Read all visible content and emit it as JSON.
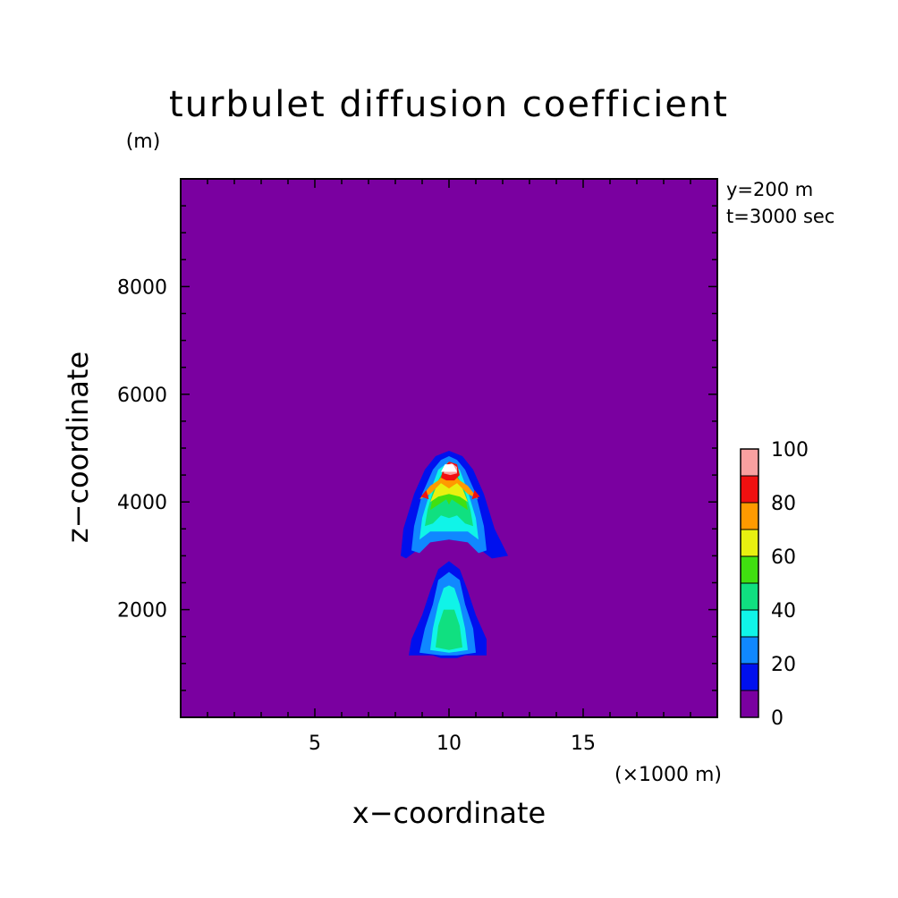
{
  "colors": {
    "background_field": "#7a00a0",
    "levels": [
      "#7a00a0",
      "#0010ee",
      "#1088ff",
      "#10f4e8",
      "#10e080",
      "#40e010",
      "#e8f010",
      "#ff9a00",
      "#f01010",
      "#f8a0a0"
    ],
    "peak": "#ffffff"
  },
  "chart_data": {
    "type": "contour",
    "title": "turbulet diffusion coefficient",
    "xlabel": "x−coordinate",
    "ylabel": "z−coordinate",
    "x_unit_label": "(×1000 m)",
    "y_unit_label": "(m)",
    "xlim": [
      0,
      20
    ],
    "ylim": [
      0,
      10000
    ],
    "x_ticks": [
      5,
      10,
      15
    ],
    "x_tick_labels": [
      "5",
      "10",
      "15"
    ],
    "y_ticks": [
      2000,
      4000,
      6000,
      8000
    ],
    "y_tick_labels": [
      "2000",
      "4000",
      "6000",
      "8000"
    ],
    "grid": false,
    "annotations": [
      "y=200 m",
      "t=3000 sec"
    ],
    "colorbar": {
      "levels": [
        0,
        10,
        20,
        30,
        40,
        50,
        60,
        70,
        80,
        90,
        100
      ],
      "tick_labels": [
        "0",
        "20",
        "40",
        "60",
        "80",
        "100"
      ],
      "tick_values": [
        0,
        20,
        40,
        60,
        80,
        100
      ]
    },
    "contours": [
      {
        "level": 10,
        "region": "upper",
        "points": [
          [
            8.2,
            3000
          ],
          [
            8.3,
            3500
          ],
          [
            8.7,
            4150
          ],
          [
            9.1,
            4600
          ],
          [
            9.5,
            4850
          ],
          [
            10,
            4950
          ],
          [
            10.5,
            4850
          ],
          [
            10.9,
            4600
          ],
          [
            11.3,
            4150
          ],
          [
            11.7,
            3500
          ],
          [
            12.2,
            3000
          ],
          [
            11.6,
            2950
          ],
          [
            11.2,
            3100
          ],
          [
            10.8,
            3250
          ],
          [
            10,
            3300
          ],
          [
            9.2,
            3250
          ],
          [
            8.8,
            3100
          ],
          [
            8.4,
            2950
          ]
        ]
      },
      {
        "level": 20,
        "region": "upper",
        "points": [
          [
            8.6,
            3100
          ],
          [
            8.7,
            3550
          ],
          [
            9,
            4150
          ],
          [
            9.4,
            4600
          ],
          [
            9.7,
            4780
          ],
          [
            10,
            4850
          ],
          [
            10.3,
            4780
          ],
          [
            10.6,
            4600
          ],
          [
            11,
            4150
          ],
          [
            11.3,
            3550
          ],
          [
            11.4,
            3100
          ],
          [
            11.1,
            3050
          ],
          [
            10.7,
            3250
          ],
          [
            10,
            3300
          ],
          [
            9.3,
            3250
          ],
          [
            8.9,
            3050
          ]
        ]
      },
      {
        "level": 30,
        "region": "upper",
        "points": [
          [
            8.9,
            3300
          ],
          [
            9,
            3700
          ],
          [
            9.3,
            4200
          ],
          [
            9.6,
            4600
          ],
          [
            10,
            4750
          ],
          [
            10.4,
            4600
          ],
          [
            10.7,
            4200
          ],
          [
            11,
            3700
          ],
          [
            11.1,
            3300
          ],
          [
            10.7,
            3450
          ],
          [
            10,
            3450
          ],
          [
            9.3,
            3450
          ]
        ]
      },
      {
        "level": 40,
        "region": "upper",
        "points": [
          [
            9.1,
            3550
          ],
          [
            9.2,
            3850
          ],
          [
            9.4,
            4200
          ],
          [
            9.7,
            4500
          ],
          [
            10,
            4650
          ],
          [
            10.3,
            4500
          ],
          [
            10.6,
            4200
          ],
          [
            10.8,
            3850
          ],
          [
            10.9,
            3550
          ],
          [
            10.6,
            3600
          ],
          [
            10.3,
            3750
          ],
          [
            10,
            3700
          ],
          [
            9.7,
            3750
          ],
          [
            9.4,
            3600
          ]
        ]
      },
      {
        "level": 50,
        "region": "upper",
        "points": [
          [
            9.3,
            3850
          ],
          [
            9.4,
            4100
          ],
          [
            9.6,
            4400
          ],
          [
            9.8,
            4550
          ],
          [
            10,
            4620
          ],
          [
            10.2,
            4550
          ],
          [
            10.4,
            4400
          ],
          [
            10.6,
            4100
          ],
          [
            10.7,
            3850
          ],
          [
            10.4,
            3950
          ],
          [
            10.1,
            4050
          ],
          [
            10,
            3950
          ],
          [
            9.9,
            4050
          ],
          [
            9.6,
            3950
          ]
        ]
      },
      {
        "level": 60,
        "region": "upper",
        "points": [
          [
            9.3,
            4000
          ],
          [
            9.5,
            4250
          ],
          [
            9.7,
            4450
          ],
          [
            10,
            4550
          ],
          [
            10.3,
            4450
          ],
          [
            10.5,
            4250
          ],
          [
            10.7,
            4000
          ],
          [
            10.4,
            4100
          ],
          [
            10,
            4150
          ],
          [
            9.6,
            4100
          ]
        ]
      },
      {
        "level": 70,
        "region": "upper",
        "points": [
          [
            8.9,
            4050
          ],
          [
            9.3,
            4300
          ],
          [
            9.6,
            4400
          ],
          [
            9.8,
            4500
          ],
          [
            10.2,
            4500
          ],
          [
            10.4,
            4400
          ],
          [
            10.7,
            4300
          ],
          [
            11.1,
            4050
          ],
          [
            10.7,
            4150
          ],
          [
            10.3,
            4350
          ],
          [
            10,
            4250
          ],
          [
            9.7,
            4350
          ],
          [
            9.3,
            4150
          ]
        ]
      },
      {
        "level": 80,
        "region": "upper",
        "points": [
          [
            9.7,
            4450
          ],
          [
            9.8,
            4650
          ],
          [
            10,
            4750
          ],
          [
            10.3,
            4700
          ],
          [
            10.4,
            4500
          ],
          [
            10.2,
            4400
          ],
          [
            9.9,
            4400
          ]
        ]
      },
      {
        "level": 80,
        "region": "upper-left-spot",
        "points": [
          [
            8.95,
            4100
          ],
          [
            9.15,
            4220
          ],
          [
            9.25,
            4050
          ]
        ]
      },
      {
        "level": 80,
        "region": "upper-right-spot",
        "points": [
          [
            10.85,
            4050
          ],
          [
            10.95,
            4220
          ],
          [
            11.15,
            4100
          ]
        ]
      },
      {
        "level": 90,
        "region": "upper",
        "points": [
          [
            9.8,
            4530
          ],
          [
            9.9,
            4680
          ],
          [
            10.1,
            4720
          ],
          [
            10.3,
            4650
          ],
          [
            10.3,
            4530
          ],
          [
            10.05,
            4500
          ]
        ]
      },
      {
        "level": 100,
        "region": "peak",
        "points": [
          [
            9.7,
            4560
          ],
          [
            9.85,
            4700
          ],
          [
            10.15,
            4700
          ],
          [
            10.3,
            4560
          ]
        ]
      },
      {
        "level": 10,
        "region": "lower",
        "points": [
          [
            8.5,
            1150
          ],
          [
            8.6,
            1450
          ],
          [
            9.0,
            1900
          ],
          [
            9.3,
            2350
          ],
          [
            9.6,
            2750
          ],
          [
            10,
            2900
          ],
          [
            10.4,
            2750
          ],
          [
            10.7,
            2350
          ],
          [
            11.0,
            1900
          ],
          [
            11.4,
            1450
          ],
          [
            11.4,
            1150
          ],
          [
            10.6,
            1150
          ],
          [
            10.3,
            1100
          ],
          [
            9.7,
            1100
          ],
          [
            9.4,
            1150
          ]
        ]
      },
      {
        "level": 20,
        "region": "lower",
        "points": [
          [
            8.9,
            1200
          ],
          [
            9.1,
            1650
          ],
          [
            9.4,
            2100
          ],
          [
            9.6,
            2550
          ],
          [
            10,
            2700
          ],
          [
            10.4,
            2550
          ],
          [
            10.6,
            2100
          ],
          [
            10.9,
            1650
          ],
          [
            11,
            1200
          ],
          [
            10.3,
            1150
          ],
          [
            9.7,
            1150
          ]
        ]
      },
      {
        "level": 30,
        "region": "lower",
        "points": [
          [
            9.3,
            1250
          ],
          [
            9.4,
            1650
          ],
          [
            9.6,
            2100
          ],
          [
            9.8,
            2400
          ],
          [
            10,
            2450
          ],
          [
            10.2,
            2400
          ],
          [
            10.4,
            2100
          ],
          [
            10.6,
            1650
          ],
          [
            10.7,
            1250
          ],
          [
            10,
            1200
          ]
        ]
      },
      {
        "level": 40,
        "region": "lower",
        "points": [
          [
            9.5,
            1300
          ],
          [
            9.6,
            1700
          ],
          [
            9.8,
            2000
          ],
          [
            10.2,
            2000
          ],
          [
            10.4,
            1700
          ],
          [
            10.5,
            1300
          ],
          [
            10,
            1250
          ]
        ]
      }
    ]
  }
}
